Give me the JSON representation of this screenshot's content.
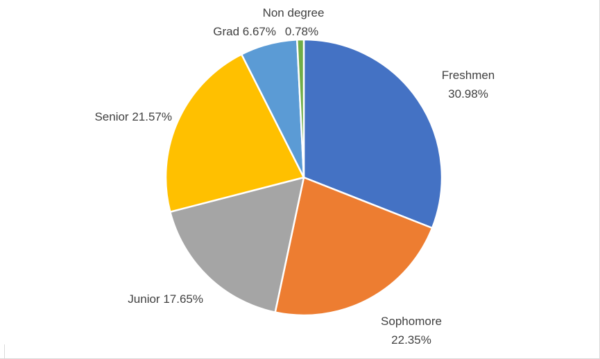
{
  "chart_data": {
    "type": "pie",
    "slices": [
      {
        "label": "Freshmen",
        "value": 30.98,
        "value_label": "30.98%",
        "color": "#4472C4"
      },
      {
        "label": "Sophomore",
        "value": 22.35,
        "value_label": "22.35%",
        "color": "#ED7D31"
      },
      {
        "label": "Junior",
        "value": 17.65,
        "value_label": "17.65%",
        "color": "#A5A5A5"
      },
      {
        "label": "Senior",
        "value": 21.57,
        "value_label": "21.57%",
        "color": "#FFC000"
      },
      {
        "label": "Grad",
        "value": 6.67,
        "value_label": "6.67%",
        "color": "#5B9BD5"
      },
      {
        "label": "Non degree",
        "value": 0.78,
        "value_label": "0.78%",
        "color": "#70AD47"
      }
    ],
    "start": "12 o'clock",
    "direction": "clockwise",
    "legend": "none"
  }
}
